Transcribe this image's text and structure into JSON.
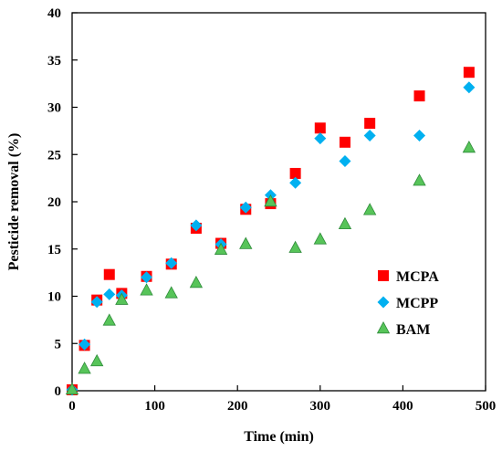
{
  "chart_data": {
    "type": "scatter",
    "xlabel": "Time (min)",
    "ylabel": "Pesticide  removal (%)",
    "xlim": [
      0,
      500
    ],
    "ylim": [
      0,
      40
    ],
    "xticks": [
      0,
      100,
      200,
      300,
      400,
      500
    ],
    "yticks": [
      0,
      5,
      10,
      15,
      20,
      25,
      30,
      35,
      40
    ],
    "grid": false,
    "legend_position": "right",
    "series": [
      {
        "name": "MCPA",
        "marker": "square",
        "color": "#ff0000",
        "x": [
          0,
          15,
          30,
          45,
          60,
          90,
          120,
          150,
          180,
          210,
          240,
          270,
          300,
          330,
          360,
          420,
          480
        ],
        "y": [
          0.1,
          4.8,
          9.6,
          12.3,
          10.3,
          12.1,
          13.4,
          17.2,
          15.6,
          19.2,
          19.8,
          23.0,
          27.8,
          26.3,
          28.3,
          31.2,
          33.7
        ]
      },
      {
        "name": "MCPP",
        "marker": "diamond",
        "color": "#00b0f0",
        "x": [
          0,
          15,
          30,
          45,
          60,
          90,
          120,
          150,
          180,
          210,
          240,
          270,
          300,
          330,
          360,
          420,
          480
        ],
        "y": [
          0.1,
          4.9,
          9.4,
          10.2,
          10.1,
          12.0,
          13.5,
          17.5,
          15.5,
          19.4,
          20.7,
          22.0,
          26.7,
          24.3,
          27.0,
          27.0,
          32.1
        ]
      },
      {
        "name": "BAM",
        "marker": "triangle",
        "color": "#57c459",
        "x": [
          0,
          15,
          30,
          45,
          60,
          90,
          120,
          150,
          180,
          210,
          240,
          270,
          300,
          330,
          360,
          420,
          480
        ],
        "y": [
          0.1,
          2.3,
          3.1,
          7.4,
          9.6,
          10.6,
          10.3,
          11.4,
          14.9,
          15.5,
          20.0,
          15.1,
          16.0,
          17.6,
          19.1,
          22.2,
          25.7
        ]
      }
    ]
  }
}
